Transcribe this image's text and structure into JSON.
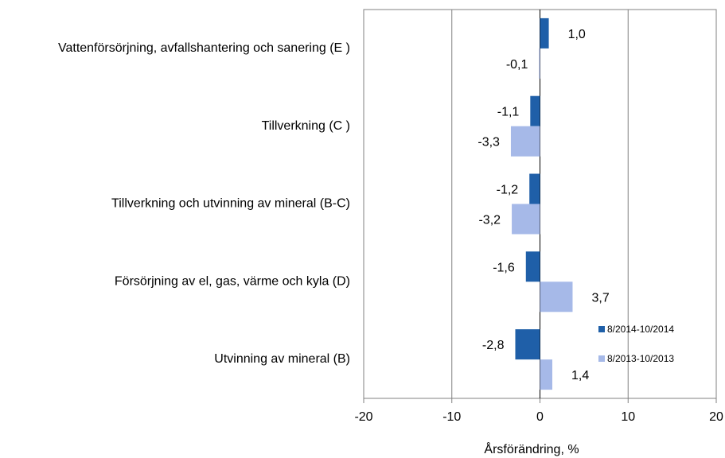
{
  "chart_data": {
    "type": "bar",
    "orientation": "horizontal",
    "categories": [
      "Vattenförsörjning, avfallshantering och sanering (E )",
      "Tillverkning (C )",
      "Tillverkning och utvinning av mineral (B-C)",
      "Försörjning av el, gas, värme och kyla (D)",
      "Utvinning av mineral  (B)"
    ],
    "series": [
      {
        "name": "8/2014-10/2014",
        "color": "#1f5fa8",
        "values": [
          1.0,
          -1.1,
          -1.2,
          -1.6,
          -2.8
        ],
        "labels": [
          "1,0",
          "-1,1",
          "-1,2",
          "-1,6",
          "-2,8"
        ]
      },
      {
        "name": "8/2013-10/2013",
        "color": "#a6b9e8",
        "values": [
          -0.1,
          -3.3,
          -3.2,
          3.7,
          1.4
        ],
        "labels": [
          "-0,1",
          "-3,3",
          "-3,2",
          "3,7",
          "1,4"
        ]
      }
    ],
    "xlabel": "Årsförändring, %",
    "xlim": [
      -20,
      20
    ],
    "xticks": [
      -20,
      -10,
      0,
      10,
      20
    ],
    "xtick_labels": [
      "-20",
      "-10",
      "0",
      "10",
      "20"
    ],
    "grid": "vertical",
    "legend": "right"
  }
}
